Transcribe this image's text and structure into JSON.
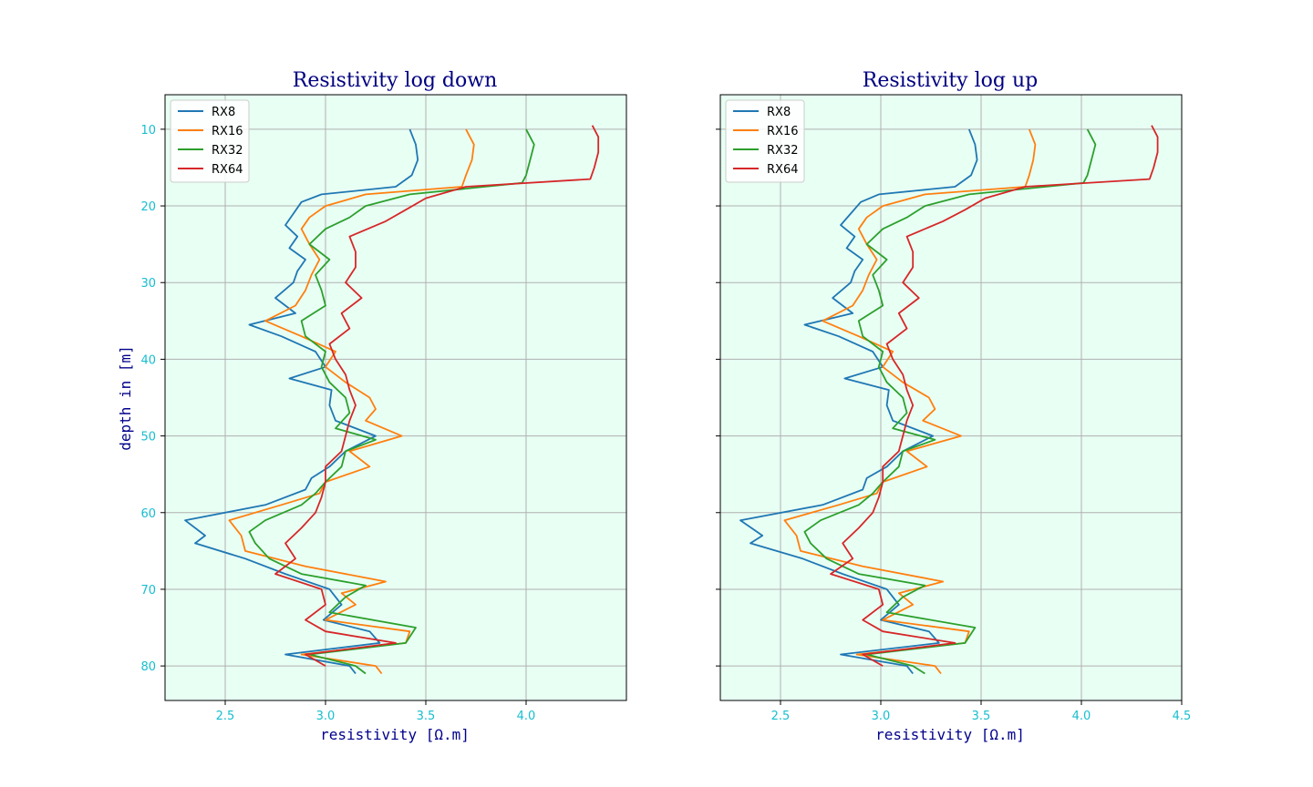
{
  "chart_data": [
    {
      "type": "line",
      "title": "Resistivity log down",
      "xlabel": "resistivity [Ω.m]",
      "ylabel": "depth in [m]",
      "xlim": [
        2.2,
        4.5
      ],
      "ylim": [
        84.5,
        5.5
      ],
      "y_inverted": true,
      "xticks": [
        2.5,
        3.0,
        3.5,
        4.0
      ],
      "yticks": [
        10,
        20,
        30,
        40,
        50,
        60,
        70,
        80
      ],
      "grid": true,
      "background": "#e8fff4",
      "legend_position": "upper-left",
      "series": [
        {
          "name": "RX8",
          "color": "#1f77b4",
          "depth": [
            10,
            12,
            14,
            16,
            17.5,
            18.5,
            19.5,
            21,
            22.5,
            24,
            25.5,
            27,
            28.5,
            30,
            32,
            34,
            35.5,
            37,
            39,
            41,
            42.5,
            44,
            46,
            48,
            50,
            52,
            54,
            55.5,
            57,
            59,
            61,
            63,
            64,
            66,
            68,
            70,
            72,
            74,
            75.5,
            77,
            78.5,
            80,
            81
          ],
          "x": [
            3.42,
            3.45,
            3.46,
            3.43,
            3.35,
            2.98,
            2.88,
            2.84,
            2.8,
            2.86,
            2.82,
            2.9,
            2.86,
            2.84,
            2.75,
            2.85,
            2.62,
            2.78,
            2.95,
            3.0,
            2.82,
            3.03,
            3.02,
            3.05,
            3.25,
            3.1,
            3.02,
            2.93,
            2.9,
            2.7,
            2.3,
            2.4,
            2.35,
            2.6,
            2.8,
            3.02,
            3.08,
            2.99,
            3.22,
            3.27,
            2.8,
            3.12,
            3.15
          ]
        },
        {
          "name": "RX16",
          "color": "#ff7f0e",
          "depth": [
            10,
            12,
            14,
            16,
            17.5,
            18.5,
            20,
            21.5,
            23,
            25,
            27,
            29,
            31,
            33,
            35,
            37,
            39,
            41,
            43,
            45,
            46.5,
            48,
            50,
            52,
            54,
            56,
            57.5,
            59,
            61,
            63,
            65,
            67,
            69,
            70.5,
            72,
            74,
            75.5,
            77,
            78.5,
            80,
            81
          ],
          "x": [
            3.7,
            3.74,
            3.73,
            3.7,
            3.68,
            3.2,
            3.0,
            2.92,
            2.88,
            2.92,
            2.97,
            2.93,
            2.9,
            2.85,
            2.7,
            2.88,
            3.05,
            3.0,
            3.1,
            3.22,
            3.25,
            3.2,
            3.38,
            3.12,
            3.22,
            3.0,
            2.97,
            2.78,
            2.52,
            2.58,
            2.6,
            2.9,
            3.3,
            3.08,
            3.15,
            3.0,
            3.42,
            3.4,
            2.88,
            3.25,
            3.28
          ]
        },
        {
          "name": "RX32",
          "color": "#2ca02c",
          "depth": [
            10,
            12,
            14,
            16,
            17,
            18.5,
            20,
            21.5,
            23,
            25,
            27,
            29,
            31,
            33,
            35,
            37,
            39,
            41,
            43,
            45,
            47,
            49,
            50.5,
            52,
            54,
            56,
            57.5,
            59,
            61,
            62.5,
            64,
            66,
            68,
            69.5,
            71,
            73,
            75,
            77,
            78.5,
            80,
            81
          ],
          "x": [
            4.0,
            4.04,
            4.02,
            4.0,
            3.98,
            3.42,
            3.2,
            3.12,
            3.0,
            2.92,
            3.02,
            2.95,
            2.98,
            3.0,
            2.88,
            2.9,
            3.0,
            2.98,
            3.02,
            3.1,
            3.12,
            3.05,
            3.25,
            3.1,
            3.08,
            3.0,
            2.95,
            2.88,
            2.7,
            2.62,
            2.65,
            2.72,
            2.88,
            3.2,
            3.1,
            3.02,
            3.45,
            3.4,
            2.92,
            3.15,
            3.2
          ]
        },
        {
          "name": "RX64",
          "color": "#d62728",
          "depth": [
            9.5,
            11,
            13,
            15,
            16.5,
            17.5,
            19,
            20.5,
            22,
            24,
            26,
            28,
            30,
            32,
            34,
            36,
            38,
            40,
            42,
            44,
            46,
            48,
            50,
            52,
            54,
            56,
            58,
            60,
            62,
            64,
            66,
            68,
            70,
            72,
            74,
            75.5,
            77,
            78.5,
            80
          ],
          "x": [
            4.33,
            4.36,
            4.36,
            4.34,
            4.32,
            3.7,
            3.5,
            3.4,
            3.3,
            3.12,
            3.15,
            3.15,
            3.1,
            3.18,
            3.08,
            3.12,
            3.02,
            3.05,
            3.1,
            3.12,
            3.15,
            3.12,
            3.1,
            3.08,
            3.0,
            3.0,
            2.98,
            2.95,
            2.88,
            2.8,
            2.85,
            2.75,
            2.98,
            3.0,
            2.9,
            3.0,
            3.35,
            2.9,
            3.0
          ]
        }
      ]
    },
    {
      "type": "line",
      "title": "Resistivity log up",
      "xlabel": "resistivity [Ω.m]",
      "ylabel": "",
      "xlim": [
        2.2,
        4.5
      ],
      "ylim": [
        84.5,
        5.5
      ],
      "y_inverted": true,
      "xticks": [
        2.5,
        3.0,
        3.5,
        4.0,
        4.5
      ],
      "yticks": [
        10,
        20,
        30,
        40,
        50,
        60,
        70,
        80
      ],
      "y_tick_labels_shown": false,
      "grid": true,
      "background": "#e8fff4",
      "legend_position": "upper-left",
      "series": [
        {
          "name": "RX8",
          "color": "#1f77b4",
          "depth": [
            10,
            12,
            14,
            16,
            17.5,
            18.5,
            19.5,
            21,
            22.5,
            24,
            25.5,
            27,
            28.5,
            30,
            32,
            34,
            35.5,
            37,
            39,
            41,
            42.5,
            44,
            46,
            48,
            50,
            52,
            54,
            55.5,
            57,
            59,
            61,
            63,
            64,
            66,
            68,
            70,
            72,
            74,
            75.5,
            77,
            78.5,
            80,
            81
          ],
          "x": [
            3.44,
            3.47,
            3.48,
            3.45,
            3.37,
            2.99,
            2.9,
            2.85,
            2.8,
            2.87,
            2.83,
            2.91,
            2.87,
            2.85,
            2.76,
            2.86,
            2.62,
            2.79,
            2.96,
            3.01,
            2.82,
            3.04,
            3.03,
            3.06,
            3.26,
            3.11,
            3.03,
            2.93,
            2.91,
            2.71,
            2.3,
            2.41,
            2.35,
            2.61,
            2.81,
            3.03,
            3.09,
            3.0,
            3.24,
            3.29,
            2.8,
            3.13,
            3.16
          ]
        },
        {
          "name": "RX16",
          "color": "#ff7f0e",
          "depth": [
            10,
            12,
            14,
            16,
            17.5,
            18.5,
            20,
            21.5,
            23,
            25,
            27,
            29,
            31,
            33,
            35,
            37,
            39,
            41,
            43,
            45,
            46.5,
            48,
            50,
            52,
            54,
            56,
            57.5,
            59,
            61,
            63,
            65,
            67,
            69,
            70.5,
            72,
            74,
            75.5,
            77,
            78.5,
            80,
            81
          ],
          "x": [
            3.74,
            3.77,
            3.76,
            3.74,
            3.72,
            3.22,
            3.01,
            2.93,
            2.89,
            2.93,
            2.98,
            2.94,
            2.91,
            2.86,
            2.71,
            2.89,
            3.06,
            3.01,
            3.11,
            3.24,
            3.27,
            3.21,
            3.4,
            3.13,
            3.23,
            3.01,
            2.98,
            2.79,
            2.52,
            2.58,
            2.6,
            2.91,
            3.31,
            3.09,
            3.16,
            3.01,
            3.44,
            3.42,
            2.88,
            3.27,
            3.3
          ]
        },
        {
          "name": "RX32",
          "color": "#2ca02c",
          "depth": [
            10,
            12,
            14,
            16,
            17,
            18.5,
            20,
            21.5,
            23,
            25,
            27,
            29,
            31,
            33,
            35,
            37,
            39,
            41,
            43,
            45,
            47,
            49,
            50.5,
            52,
            54,
            56,
            57.5,
            59,
            61,
            62.5,
            64,
            66,
            68,
            69.5,
            71,
            73,
            75,
            77,
            78.5,
            80,
            81
          ],
          "x": [
            4.03,
            4.07,
            4.05,
            4.03,
            4.01,
            3.44,
            3.22,
            3.13,
            3.01,
            2.93,
            3.03,
            2.96,
            2.99,
            3.01,
            2.89,
            2.91,
            3.01,
            2.99,
            3.03,
            3.11,
            3.13,
            3.06,
            3.27,
            3.11,
            3.09,
            3.01,
            2.96,
            2.89,
            2.7,
            2.62,
            2.65,
            2.73,
            2.89,
            3.22,
            3.11,
            3.03,
            3.47,
            3.42,
            2.93,
            3.16,
            3.22
          ]
        },
        {
          "name": "RX64",
          "color": "#d62728",
          "depth": [
            9.5,
            11,
            13,
            15,
            16.5,
            17.5,
            19,
            20.5,
            22,
            24,
            26,
            28,
            30,
            32,
            34,
            36,
            38,
            40,
            42,
            44,
            46,
            48,
            50,
            52,
            54,
            56,
            58,
            60,
            62,
            64,
            66,
            68,
            70,
            72,
            74,
            75.5,
            77,
            78.5,
            80
          ],
          "x": [
            4.35,
            4.38,
            4.38,
            4.36,
            4.34,
            3.72,
            3.52,
            3.42,
            3.31,
            3.13,
            3.16,
            3.16,
            3.11,
            3.19,
            3.09,
            3.13,
            3.03,
            3.06,
            3.11,
            3.13,
            3.16,
            3.13,
            3.11,
            3.09,
            3.01,
            3.01,
            2.99,
            2.96,
            2.89,
            2.81,
            2.86,
            2.75,
            2.99,
            3.01,
            2.91,
            3.01,
            3.37,
            2.91,
            3.01
          ]
        }
      ]
    }
  ]
}
